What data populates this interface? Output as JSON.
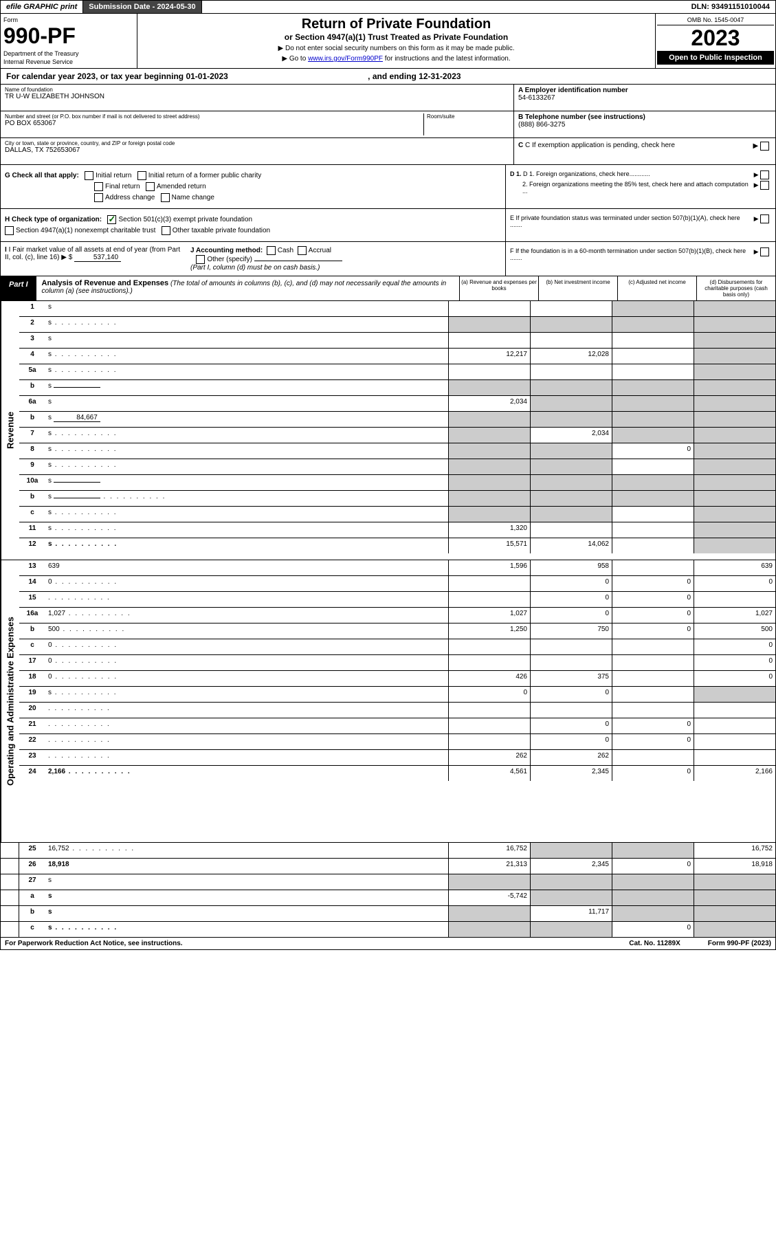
{
  "topbar": {
    "efile": "efile GRAPHIC print",
    "submission_label": "Submission Date - 2024-05-30",
    "dln": "DLN: 93491151010044"
  },
  "header": {
    "form_label": "Form",
    "form_number": "990-PF",
    "dept1": "Department of the Treasury",
    "dept2": "Internal Revenue Service",
    "title": "Return of Private Foundation",
    "subtitle": "or Section 4947(a)(1) Trust Treated as Private Foundation",
    "instr1": "▶ Do not enter social security numbers on this form as it may be made public.",
    "instr2_pre": "▶ Go to ",
    "instr2_link": "www.irs.gov/Form990PF",
    "instr2_post": " for instructions and the latest information.",
    "omb": "OMB No. 1545-0047",
    "year": "2023",
    "inspection": "Open to Public Inspection"
  },
  "cal_year": {
    "text": "For calendar year 2023, or tax year beginning 01-01-2023",
    "ending": ", and ending 12-31-2023"
  },
  "entity": {
    "name_label": "Name of foundation",
    "name_value": "TR U-W ELIZABETH JOHNSON",
    "street_label": "Number and street (or P.O. box number if mail is not delivered to street address)",
    "room_label": "Room/suite",
    "street_value": "PO BOX 653067",
    "city_label": "City or town, state or province, country, and ZIP or foreign postal code",
    "city_value": "DALLAS, TX  752653067",
    "a_label": "A Employer identification number",
    "a_value": "54-6133267",
    "b_label": "B Telephone number (see instructions)",
    "b_value": "(888) 866-3275",
    "c_label": "C If exemption application is pending, check here"
  },
  "checks": {
    "g_label": "G Check all that apply:",
    "g_items": [
      "Initial return",
      "Initial return of a former public charity",
      "Final return",
      "Amended return",
      "Address change",
      "Name change"
    ],
    "d1": "D 1. Foreign organizations, check here............",
    "d2": "2. Foreign organizations meeting the 85% test, check here and attach computation ...",
    "e": "E  If private foundation status was terminated under section 507(b)(1)(A), check here .......",
    "h_label": "H Check type of organization:",
    "h1": "Section 501(c)(3) exempt private foundation",
    "h2": "Section 4947(a)(1) nonexempt charitable trust",
    "h3": "Other taxable private foundation",
    "i_label": "I Fair market value of all assets at end of year (from Part II, col. (c), line 16)",
    "i_value": "537,140",
    "j_label": "J Accounting method:",
    "j_cash": "Cash",
    "j_accrual": "Accrual",
    "j_other": "Other (specify)",
    "j_note": "(Part I, column (d) must be on cash basis.)",
    "f": "F  If the foundation is in a 60-month termination under section 507(b)(1)(B), check here ......."
  },
  "part1": {
    "label": "Part I",
    "title": "Analysis of Revenue and Expenses",
    "note": "(The total of amounts in columns (b), (c), and (d) may not necessarily equal the amounts in column (a) (see instructions).)",
    "col_a": "(a)  Revenue and expenses per books",
    "col_b": "(b)  Net investment income",
    "col_c": "(c)  Adjusted net income",
    "col_d": "(d)  Disbursements for charitable purposes (cash basis only)"
  },
  "sidelabels": {
    "revenue": "Revenue",
    "expenses": "Operating and Administrative Expenses"
  },
  "rows": [
    {
      "n": "1",
      "d": "s",
      "a": "",
      "b": "",
      "c": "s"
    },
    {
      "n": "2",
      "d": "s",
      "bold_not": true,
      "a": "s",
      "b": "s",
      "c": "s",
      "dots": true
    },
    {
      "n": "3",
      "d": "s",
      "a": "",
      "b": "",
      "c": ""
    },
    {
      "n": "4",
      "d": "s",
      "a": "12,217",
      "b": "12,028",
      "c": "",
      "dots": true
    },
    {
      "n": "5a",
      "d": "s",
      "a": "",
      "b": "",
      "c": "",
      "dots": true
    },
    {
      "n": "b",
      "d": "s",
      "a": "s",
      "b": "s",
      "c": "s",
      "inline": ""
    },
    {
      "n": "6a",
      "d": "s",
      "a": "2,034",
      "b": "s",
      "c": "s"
    },
    {
      "n": "b",
      "d": "s",
      "a": "s",
      "b": "s",
      "c": "s",
      "inline": "84,667"
    },
    {
      "n": "7",
      "d": "s",
      "a": "s",
      "b": "2,034",
      "c": "s",
      "dots": true
    },
    {
      "n": "8",
      "d": "s",
      "a": "s",
      "b": "s",
      "c": "0",
      "dots": true
    },
    {
      "n": "9",
      "d": "s",
      "a": "s",
      "b": "s",
      "c": "",
      "dots": true
    },
    {
      "n": "10a",
      "d": "s",
      "a": "s",
      "b": "s",
      "c": "s",
      "inline": ""
    },
    {
      "n": "b",
      "d": "s",
      "a": "s",
      "b": "s",
      "c": "s",
      "inline": "",
      "dots": true
    },
    {
      "n": "c",
      "d": "s",
      "a": "s",
      "b": "s",
      "c": "",
      "dots": true
    },
    {
      "n": "11",
      "d": "s",
      "a": "1,320",
      "b": "",
      "c": "",
      "dots": true
    },
    {
      "n": "12",
      "d": "s",
      "a": "15,571",
      "b": "14,062",
      "c": "",
      "bold": true,
      "dots": true
    },
    {
      "n": "13",
      "d": "639",
      "a": "1,596",
      "b": "958",
      "c": ""
    },
    {
      "n": "14",
      "d": "0",
      "a": "",
      "b": "0",
      "c": "0",
      "dots": true
    },
    {
      "n": "15",
      "d": "",
      "a": "",
      "b": "0",
      "c": "0",
      "dots": true
    },
    {
      "n": "16a",
      "d": "1,027",
      "a": "1,027",
      "b": "0",
      "c": "0",
      "dots": true
    },
    {
      "n": "b",
      "d": "500",
      "a": "1,250",
      "b": "750",
      "c": "0",
      "dots": true
    },
    {
      "n": "c",
      "d": "0",
      "a": "",
      "b": "",
      "c": "",
      "dots": true
    },
    {
      "n": "17",
      "d": "0",
      "a": "",
      "b": "",
      "c": "",
      "dots": true
    },
    {
      "n": "18",
      "d": "0",
      "a": "426",
      "b": "375",
      "c": "",
      "dots": true
    },
    {
      "n": "19",
      "d": "s",
      "a": "0",
      "b": "0",
      "c": "",
      "dots": true
    },
    {
      "n": "20",
      "d": "",
      "a": "",
      "b": "",
      "c": "",
      "dots": true
    },
    {
      "n": "21",
      "d": "",
      "a": "",
      "b": "0",
      "c": "0",
      "dots": true
    },
    {
      "n": "22",
      "d": "",
      "a": "",
      "b": "0",
      "c": "0",
      "dots": true
    },
    {
      "n": "23",
      "d": "",
      "a": "262",
      "b": "262",
      "c": "",
      "dots": true
    },
    {
      "n": "24",
      "d": "2,166",
      "a": "4,561",
      "b": "2,345",
      "c": "0",
      "bold": true,
      "dots": true
    },
    {
      "n": "25",
      "d": "16,752",
      "a": "16,752",
      "b": "s",
      "c": "s",
      "dots": true
    },
    {
      "n": "26",
      "d": "18,918",
      "a": "21,313",
      "b": "2,345",
      "c": "0",
      "bold": true
    },
    {
      "n": "27",
      "d": "s",
      "a": "s",
      "b": "s",
      "c": "s"
    },
    {
      "n": "a",
      "d": "s",
      "a": "-5,742",
      "b": "s",
      "c": "s",
      "bold": true
    },
    {
      "n": "b",
      "d": "s",
      "a": "s",
      "b": "11,717",
      "c": "s",
      "bold": true
    },
    {
      "n": "c",
      "d": "s",
      "a": "s",
      "b": "s",
      "c": "0",
      "bold": true,
      "dots": true
    }
  ],
  "footer": {
    "left": "For Paperwork Reduction Act Notice, see instructions.",
    "center": "Cat. No. 11289X",
    "right": "Form 990-PF (2023)"
  }
}
